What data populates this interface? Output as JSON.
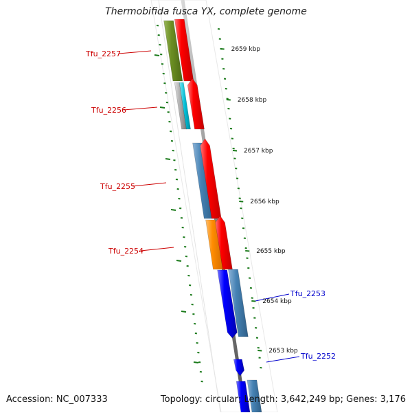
{
  "title": "Thermobifida fusca YX, complete genome",
  "footer": {
    "accession": "Accession: NC_007333",
    "summary": "Topology: circular; Length: 3,642,249 bp; Genes: 3,176"
  },
  "scale": {
    "unit": "kbp",
    "ticks": [
      {
        "label": "2659 kbp"
      },
      {
        "label": "2658 kbp"
      },
      {
        "label": "2657 kbp"
      },
      {
        "label": "2656 kbp"
      },
      {
        "label": "2655 kbp"
      },
      {
        "label": "2654 kbp"
      },
      {
        "label": "2653 kbp"
      }
    ]
  },
  "genes": [
    {
      "name": "Tfu_2257",
      "strand": "+",
      "label_color": "#cc0000"
    },
    {
      "name": "Tfu_2256",
      "strand": "+",
      "label_color": "#cc0000"
    },
    {
      "name": "Tfu_2255",
      "strand": "+",
      "label_color": "#cc0000"
    },
    {
      "name": "Tfu_2254",
      "strand": "+",
      "label_color": "#cc0000"
    },
    {
      "name": "Tfu_2253",
      "strand": "-",
      "label_color": "#0000cc"
    },
    {
      "name": "Tfu_2252",
      "strand": "-",
      "label_color": "#0000cc"
    }
  ],
  "colors": {
    "forward_strand": "#ff0000",
    "reverse_strand": "#0000ff",
    "backbone": "#8a8a8a",
    "tick": "#1a7a1a",
    "cog_green": "#6b8e23",
    "cog_steel": "#4682b4",
    "cog_orange": "#ff8c00",
    "cog_cyan": "#00bcd4",
    "cog_gray": "#a9a9a9"
  }
}
